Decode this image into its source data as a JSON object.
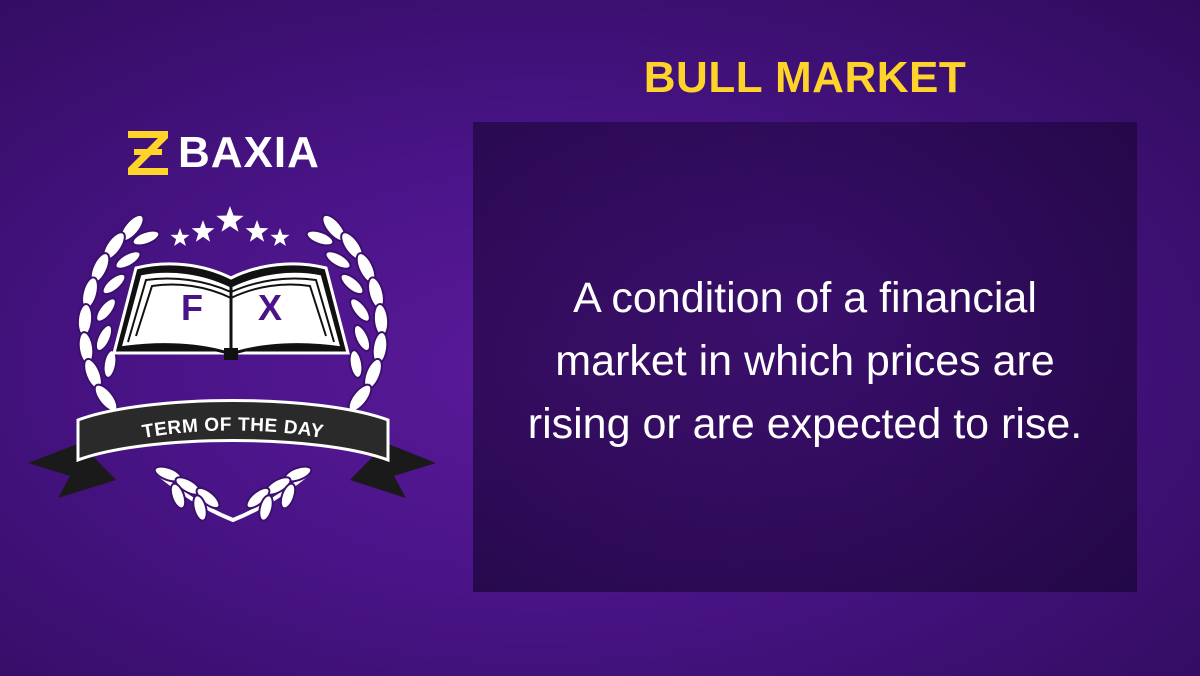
{
  "brand": {
    "name": "BAXIA",
    "mark_icon": "baxia-logo-icon",
    "mark_color": "#ffd42a"
  },
  "emblem": {
    "book_letters": [
      "F",
      "X"
    ],
    "ribbon_text": "TERM OF THE DAY",
    "star_count": 5,
    "icons": [
      "laurel-wreath-icon",
      "open-book-icon",
      "star-icon",
      "ribbon-banner-icon"
    ]
  },
  "term": {
    "title": "BULL MARKET",
    "definition": "A condition of a financial market in which prices are rising or are expected to rise."
  },
  "colors": {
    "background": "#4a1488",
    "accent": "#ffd42a",
    "text": "#ffffff",
    "book_letters": "#4a1488",
    "ribbon": "#222222"
  }
}
